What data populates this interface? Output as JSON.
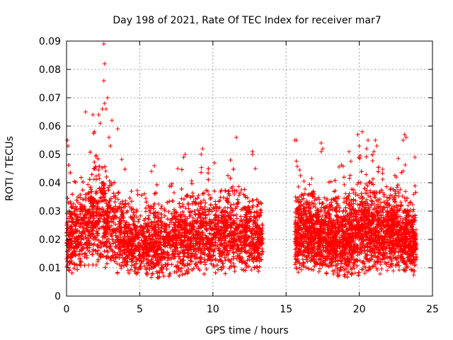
{
  "chart_data": {
    "type": "scatter",
    "title": "Day 198 of 2021, Rate Of TEC Index for receiver mar7",
    "xlabel": "GPS time / hours",
    "ylabel": "ROTI / TECUs",
    "xlim": [
      0,
      25
    ],
    "ylim": [
      0,
      0.09
    ],
    "xticks": [
      "0",
      "5",
      "10",
      "15",
      "20",
      "25"
    ],
    "yticks": [
      "0",
      "0.01",
      "0.02",
      "0.03",
      "0.04",
      "0.05",
      "0.06",
      "0.07",
      "0.08",
      "0.09"
    ],
    "grid": true,
    "marker": "+",
    "color": "#ff0000",
    "series": [
      {
        "name": "ROTI",
        "band": [
          [
            0.0,
            0.007,
            0.033,
            0.055
          ],
          [
            0.5,
            0.008,
            0.032,
            0.042
          ],
          [
            1.0,
            0.008,
            0.036,
            0.046
          ],
          [
            1.5,
            0.008,
            0.04,
            0.06
          ],
          [
            2.0,
            0.008,
            0.045,
            0.064
          ],
          [
            2.5,
            0.008,
            0.045,
            0.07
          ],
          [
            3.0,
            0.008,
            0.042,
            0.065
          ],
          [
            3.5,
            0.007,
            0.036,
            0.059
          ],
          [
            4.0,
            0.007,
            0.033,
            0.047
          ],
          [
            4.5,
            0.007,
            0.03,
            0.04
          ],
          [
            5.0,
            0.007,
            0.029,
            0.036
          ],
          [
            5.5,
            0.006,
            0.03,
            0.039
          ],
          [
            6.0,
            0.005,
            0.032,
            0.043
          ],
          [
            6.5,
            0.005,
            0.032,
            0.04
          ],
          [
            7.0,
            0.006,
            0.033,
            0.044
          ],
          [
            7.5,
            0.006,
            0.034,
            0.046
          ],
          [
            8.0,
            0.006,
            0.035,
            0.05
          ],
          [
            8.5,
            0.006,
            0.034,
            0.043
          ],
          [
            9.0,
            0.007,
            0.036,
            0.052
          ],
          [
            9.5,
            0.007,
            0.036,
            0.046
          ],
          [
            10.0,
            0.007,
            0.035,
            0.044
          ],
          [
            10.5,
            0.007,
            0.036,
            0.041
          ],
          [
            11.0,
            0.007,
            0.036,
            0.045
          ],
          [
            11.5,
            0.007,
            0.036,
            0.045
          ],
          [
            12.0,
            0.007,
            0.035,
            0.04
          ],
          [
            12.5,
            0.007,
            0.034,
            0.038
          ],
          [
            13.0,
            0.008,
            0.033,
            0.035
          ],
          [
            13.4,
            0.009,
            0.032,
            0.033
          ]
        ],
        "band_2": [
          [
            15.6,
            0.008,
            0.033,
            0.055
          ],
          [
            16.0,
            0.008,
            0.035,
            0.045
          ],
          [
            16.5,
            0.007,
            0.036,
            0.043
          ],
          [
            17.0,
            0.007,
            0.034,
            0.045
          ],
          [
            17.5,
            0.007,
            0.034,
            0.052
          ],
          [
            18.0,
            0.007,
            0.033,
            0.041
          ],
          [
            18.5,
            0.006,
            0.034,
            0.047
          ],
          [
            19.0,
            0.005,
            0.033,
            0.05
          ],
          [
            19.5,
            0.006,
            0.037,
            0.052
          ],
          [
            20.0,
            0.006,
            0.04,
            0.058
          ],
          [
            20.5,
            0.007,
            0.04,
            0.053
          ],
          [
            21.0,
            0.007,
            0.038,
            0.056
          ],
          [
            21.5,
            0.007,
            0.036,
            0.045
          ],
          [
            22.0,
            0.008,
            0.037,
            0.045
          ],
          [
            22.5,
            0.008,
            0.036,
            0.045
          ],
          [
            23.0,
            0.007,
            0.034,
            0.057
          ],
          [
            23.5,
            0.007,
            0.032,
            0.045
          ],
          [
            23.9,
            0.007,
            0.03,
            0.049
          ]
        ],
        "outliers": [
          [
            2.55,
            0.089
          ],
          [
            2.6,
            0.082
          ],
          [
            2.55,
            0.076
          ],
          [
            2.8,
            0.07
          ],
          [
            2.6,
            0.068
          ],
          [
            2.45,
            0.066
          ],
          [
            2.7,
            0.066
          ],
          [
            1.3,
            0.065
          ],
          [
            2.2,
            0.064
          ],
          [
            1.8,
            0.064
          ],
          [
            3.1,
            0.062
          ],
          [
            2.3,
            0.061
          ],
          [
            3.5,
            0.059
          ],
          [
            1.9,
            0.058
          ],
          [
            0.05,
            0.055
          ],
          [
            0.1,
            0.053
          ],
          [
            2.9,
            0.056
          ],
          [
            11.6,
            0.056
          ],
          [
            9.3,
            0.052
          ],
          [
            9.2,
            0.05
          ],
          [
            8.1,
            0.05
          ],
          [
            8.0,
            0.049
          ],
          [
            12.7,
            0.051
          ],
          [
            12.7,
            0.05
          ],
          [
            3.0,
            0.053
          ],
          [
            15.6,
            0.055
          ],
          [
            15.7,
            0.055
          ],
          [
            17.4,
            0.054
          ],
          [
            17.5,
            0.052
          ],
          [
            17.4,
            0.051
          ],
          [
            20.2,
            0.058
          ],
          [
            19.9,
            0.057
          ],
          [
            21.1,
            0.055
          ],
          [
            23.1,
            0.057
          ],
          [
            23.0,
            0.055
          ],
          [
            23.2,
            0.056
          ],
          [
            20.6,
            0.055
          ],
          [
            20.0,
            0.053
          ],
          [
            19.3,
            0.051
          ],
          [
            21.2,
            0.053
          ],
          [
            23.8,
            0.049
          ],
          [
            21.0,
            0.051
          ],
          [
            20.5,
            0.052
          ],
          [
            11.2,
            0.048
          ],
          [
            10.1,
            0.047
          ],
          [
            6.0,
            0.046
          ],
          [
            5.8,
            0.044
          ],
          [
            7.6,
            0.045
          ],
          [
            12.9,
            0.045
          ]
        ]
      }
    ]
  }
}
